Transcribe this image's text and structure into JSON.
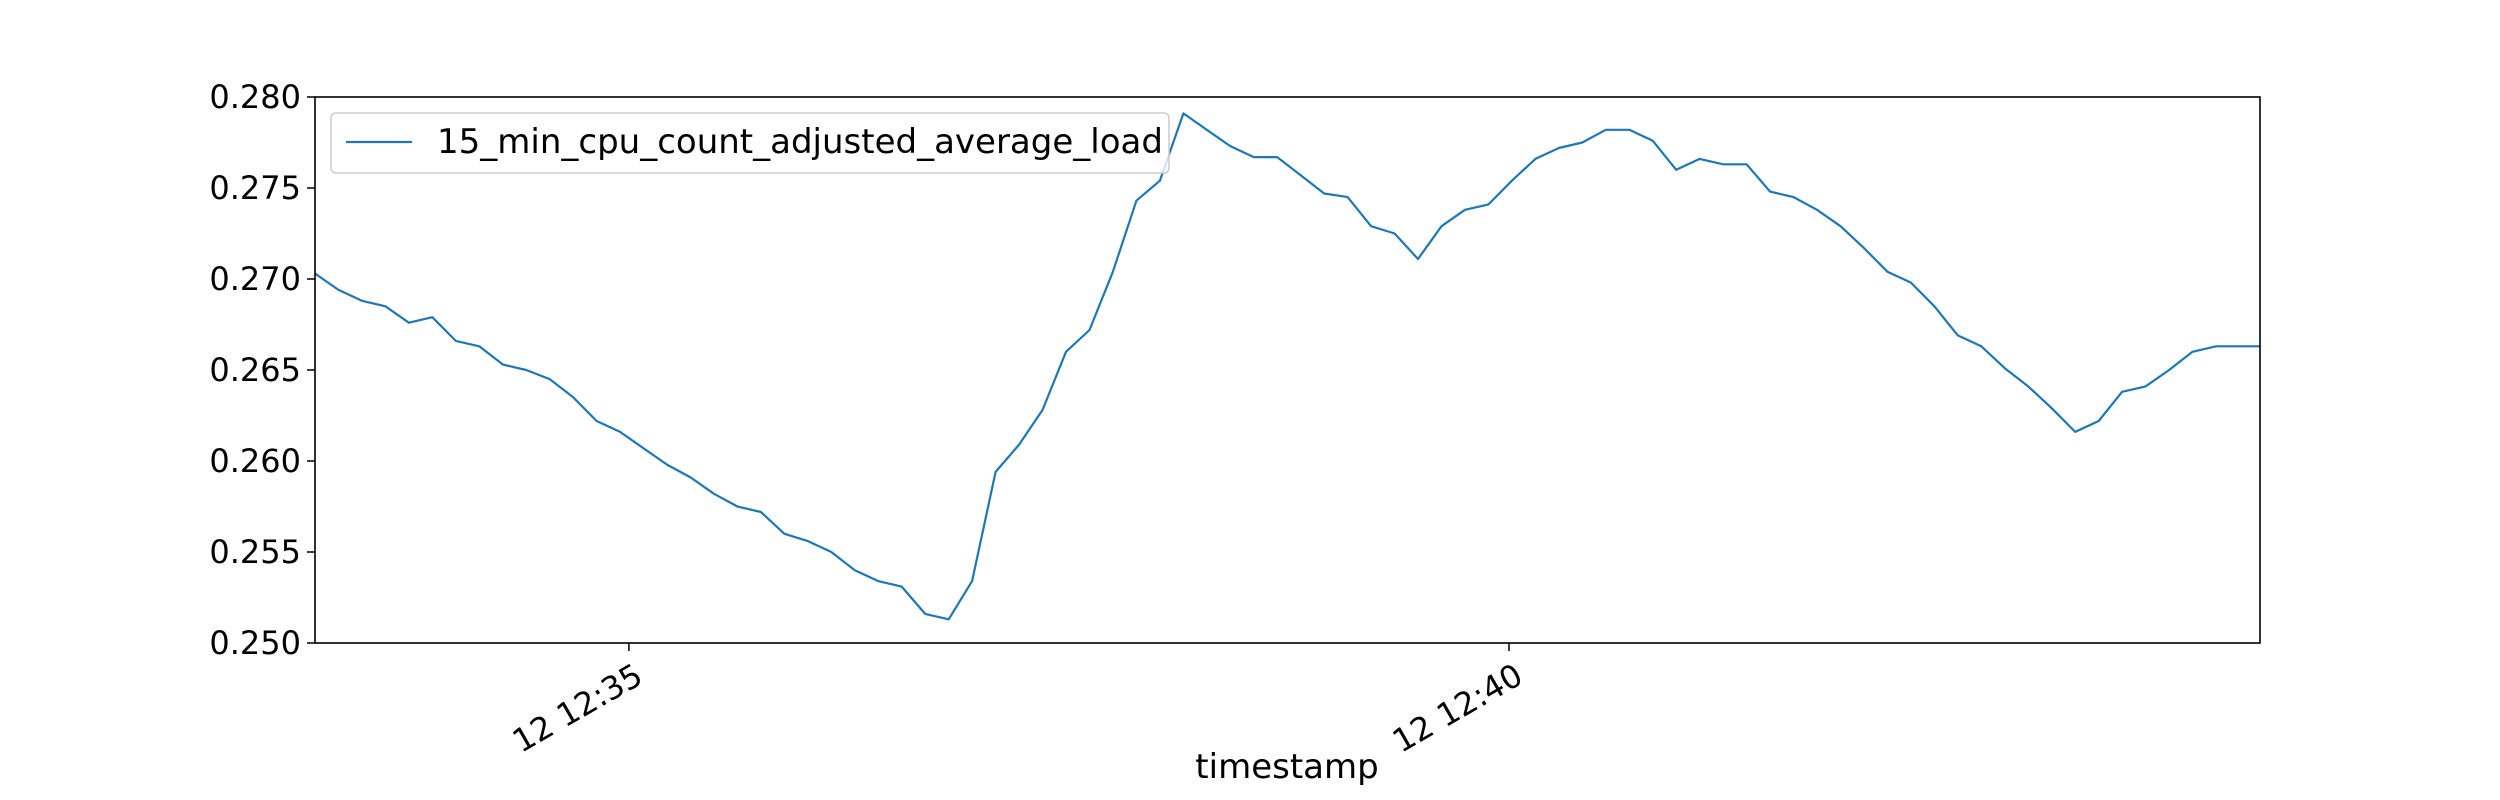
{
  "chart_data": {
    "type": "line",
    "title": "",
    "xlabel": "timestamp",
    "ylabel": "",
    "ylim": [
      0.25,
      0.28
    ],
    "x_range_minutes": [
      "12:33:13",
      "12:44:16"
    ],
    "grid": false,
    "legend_position": "top-left",
    "line_color": "#1f77b4",
    "x_ticks": [
      {
        "value": "12:35:00",
        "label": "12 12:35"
      },
      {
        "value": "12:40:00",
        "label": "12 12:40"
      }
    ],
    "y_ticks": [
      {
        "value": 0.25,
        "label": "0.250"
      },
      {
        "value": 0.255,
        "label": "0.255"
      },
      {
        "value": 0.26,
        "label": "0.260"
      },
      {
        "value": 0.265,
        "label": "0.265"
      },
      {
        "value": 0.27,
        "label": "0.270"
      },
      {
        "value": 0.275,
        "label": "0.275"
      },
      {
        "value": 0.28,
        "label": "0.280"
      }
    ],
    "series": [
      {
        "name": "15_min_cpu_count_adjusted_average_load",
        "x": [
          "12:33:13",
          "12:33:21",
          "12:33:29",
          "12:33:37",
          "12:33:45",
          "12:33:53",
          "12:34:01",
          "12:34:09",
          "12:34:17",
          "12:34:25",
          "12:34:33",
          "12:34:41",
          "12:34:49",
          "12:34:57",
          "12:35:05",
          "12:35:13",
          "12:35:21",
          "12:35:29",
          "12:35:37",
          "12:35:45",
          "12:35:53",
          "12:36:01",
          "12:36:09",
          "12:36:17",
          "12:36:25",
          "12:36:33",
          "12:36:41",
          "12:36:49",
          "12:36:57",
          "12:37:05",
          "12:37:13",
          "12:37:21",
          "12:37:29",
          "12:37:37",
          "12:37:45",
          "12:37:53",
          "12:38:01",
          "12:38:09",
          "12:38:17",
          "12:38:25",
          "12:38:33",
          "12:38:41",
          "12:38:49",
          "12:38:57",
          "12:39:05",
          "12:39:13",
          "12:39:21",
          "12:39:29",
          "12:39:37",
          "12:39:45",
          "12:39:53",
          "12:40:01",
          "12:40:09",
          "12:40:17",
          "12:40:25",
          "12:40:33",
          "12:40:41",
          "12:40:49",
          "12:40:57",
          "12:41:05",
          "12:41:13",
          "12:41:21",
          "12:41:29",
          "12:41:37",
          "12:41:45",
          "12:41:53",
          "12:42:01",
          "12:42:09",
          "12:42:17",
          "12:42:25",
          "12:42:33",
          "12:42:41",
          "12:42:49",
          "12:42:57",
          "12:43:05",
          "12:43:13",
          "12:43:21",
          "12:43:29",
          "12:43:37",
          "12:43:45",
          "12:43:53",
          "12:44:01",
          "12:44:09",
          "12:44:16"
        ],
        "y": [
          0.2703,
          0.2694,
          0.2688,
          0.2685,
          0.2676,
          0.2679,
          0.2666,
          0.2663,
          0.2653,
          0.265,
          0.2645,
          0.2635,
          0.2622,
          0.2616,
          0.2607,
          0.2598,
          0.2591,
          0.2582,
          0.2575,
          0.2572,
          0.256,
          0.2556,
          0.255,
          0.254,
          0.2534,
          0.2531,
          0.2516,
          0.2513,
          0.2534,
          0.2594,
          0.2609,
          0.2628,
          0.266,
          0.2672,
          0.2704,
          0.2743,
          0.2754,
          0.2791,
          0.2782,
          0.2773,
          0.2767,
          0.2767,
          0.2757,
          0.2747,
          0.2745,
          0.2729,
          0.2725,
          0.2711,
          0.2729,
          0.2738,
          0.2741,
          0.2754,
          0.2766,
          0.2772,
          0.2775,
          0.2782,
          0.2782,
          0.2776,
          0.276,
          0.2766,
          0.2763,
          0.2763,
          0.2748,
          0.2745,
          0.2738,
          0.2729,
          0.2717,
          0.2704,
          0.2698,
          0.2685,
          0.2669,
          0.2663,
          0.2651,
          0.2641,
          0.2629,
          0.2616,
          0.2622,
          0.2638,
          0.2641,
          0.265,
          0.266,
          0.2663,
          0.2663,
          0.2663
        ]
      }
    ]
  }
}
